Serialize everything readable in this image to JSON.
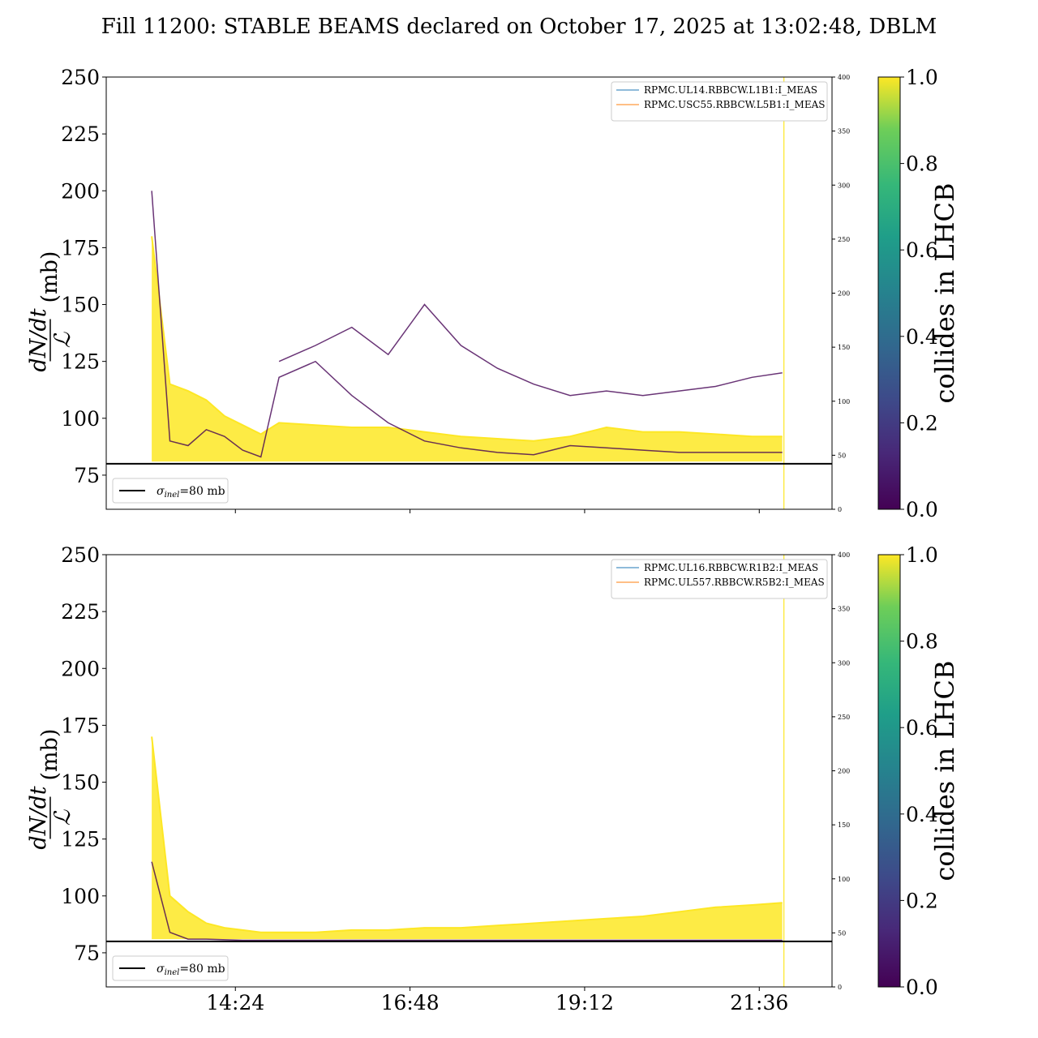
{
  "title": "Fill 11200: STABLE BEAMS declared on October 17, 2025 at 13:02:48, DBLM",
  "colors": {
    "low": "#440154",
    "mid": "#21918c",
    "high": "#fde725",
    "blue_line": "#1f77b4",
    "orange_line": "#ff7f0e",
    "reference": "#000000"
  },
  "chart_data": [
    {
      "type": "line",
      "ylabel": "dN/dt / ℒ (mb)",
      "ylim": [
        60,
        250
      ],
      "yticks": [
        75,
        100,
        125,
        150,
        175,
        200,
        225,
        250
      ],
      "y2lim": [
        0,
        400
      ],
      "y2ticks": [
        0,
        50,
        100,
        150,
        200,
        250,
        300,
        350,
        400
      ],
      "xticks": [
        "14:24",
        "16:48",
        "19:12",
        "21:36"
      ],
      "xtick_labels_shown": false,
      "legend": {
        "position": "top-right",
        "entries": [
          "RPMC.UL14.RBBCW.L1B1:I_MEAS",
          "RPMC.USC55.RBBCW.L5B1:I_MEAS"
        ]
      },
      "reference": {
        "label_sym": "σ",
        "label_sub": "inel",
        "label_rest": "=80 mb",
        "value": 80,
        "legend_position": "bottom-left"
      },
      "colorbar": {
        "label": "collides in LHCB",
        "ticks": [
          "0.0",
          "0.2",
          "0.4",
          "0.6",
          "0.8",
          "1.0"
        ],
        "range": [
          0,
          1
        ]
      },
      "series": [
        {
          "collides": 1.0,
          "x": [
            "13:15",
            "13:30",
            "13:45",
            "14:00",
            "14:15",
            "14:30",
            "14:45",
            "15:00",
            "15:30",
            "16:00",
            "16:30",
            "17:00",
            "17:30",
            "18:00",
            "18:30",
            "19:00",
            "19:30",
            "20:00",
            "20:30",
            "21:00",
            "21:30",
            "21:55"
          ],
          "y": [
            180,
            115,
            112,
            108,
            101,
            97,
            93,
            98,
            97,
            96,
            96,
            94,
            92,
            91,
            90,
            92,
            96,
            94,
            94,
            93,
            92,
            92
          ]
        },
        {
          "collides": 0.0,
          "x": [
            "13:15",
            "13:30",
            "13:45",
            "14:00",
            "14:15",
            "14:30",
            "14:45",
            "15:00",
            "15:30",
            "16:00",
            "16:30",
            "17:00",
            "17:30",
            "18:00",
            "18:30",
            "19:00",
            "19:30",
            "20:00",
            "20:30",
            "21:00",
            "21:30",
            "21:55"
          ],
          "y": [
            200,
            90,
            88,
            95,
            92,
            86,
            83,
            118,
            125,
            110,
            98,
            90,
            87,
            85,
            84,
            88,
            87,
            86,
            85,
            85,
            85,
            85
          ]
        },
        {
          "collides": 0.0,
          "x": [
            "15:00",
            "15:30",
            "16:00",
            "16:30",
            "17:00",
            "17:30",
            "18:00",
            "18:30",
            "19:00",
            "19:30",
            "20:00",
            "20:30",
            "21:00",
            "21:30",
            "21:55"
          ],
          "y": [
            125,
            132,
            140,
            128,
            150,
            132,
            122,
            115,
            110,
            112,
            110,
            112,
            114,
            118,
            120
          ]
        }
      ]
    },
    {
      "type": "line",
      "ylabel": "dN/dt / ℒ (mb)",
      "ylim": [
        60,
        250
      ],
      "yticks": [
        75,
        100,
        125,
        150,
        175,
        200,
        225,
        250
      ],
      "y2lim": [
        0,
        400
      ],
      "y2ticks": [
        0,
        50,
        100,
        150,
        200,
        250,
        300,
        350,
        400
      ],
      "xticks": [
        "14:24",
        "16:48",
        "19:12",
        "21:36"
      ],
      "xtick_labels_shown": true,
      "legend": {
        "position": "top-right",
        "entries": [
          "RPMC.UL16.RBBCW.R1B2:I_MEAS",
          "RPMC.UL557.RBBCW.R5B2:I_MEAS"
        ]
      },
      "reference": {
        "label_sym": "σ",
        "label_sub": "inel",
        "label_rest": "=80 mb",
        "value": 80,
        "legend_position": "bottom-left"
      },
      "colorbar": {
        "label": "collides in LHCB",
        "ticks": [
          "0.0",
          "0.2",
          "0.4",
          "0.6",
          "0.8",
          "1.0"
        ],
        "range": [
          0,
          1
        ]
      },
      "series": [
        {
          "collides": 1.0,
          "x": [
            "13:15",
            "13:30",
            "13:45",
            "14:00",
            "14:15",
            "14:30",
            "14:45",
            "15:00",
            "15:30",
            "16:00",
            "16:30",
            "17:00",
            "17:30",
            "18:00",
            "18:30",
            "19:00",
            "19:30",
            "20:00",
            "20:30",
            "21:00",
            "21:30",
            "21:55"
          ],
          "y": [
            170,
            100,
            93,
            88,
            86,
            85,
            84,
            84,
            84,
            85,
            85,
            86,
            86,
            87,
            88,
            89,
            90,
            91,
            93,
            95,
            96,
            97
          ]
        },
        {
          "collides": 0.0,
          "x": [
            "13:15",
            "13:30",
            "13:45",
            "14:00",
            "14:30",
            "15:00",
            "16:00",
            "17:00",
            "18:00",
            "19:00",
            "20:00",
            "21:00",
            "21:55"
          ],
          "y": [
            115,
            84,
            81,
            81,
            80.5,
            80.5,
            80.5,
            80.5,
            80.5,
            80.5,
            80.5,
            80.5,
            80.5
          ]
        }
      ]
    }
  ]
}
